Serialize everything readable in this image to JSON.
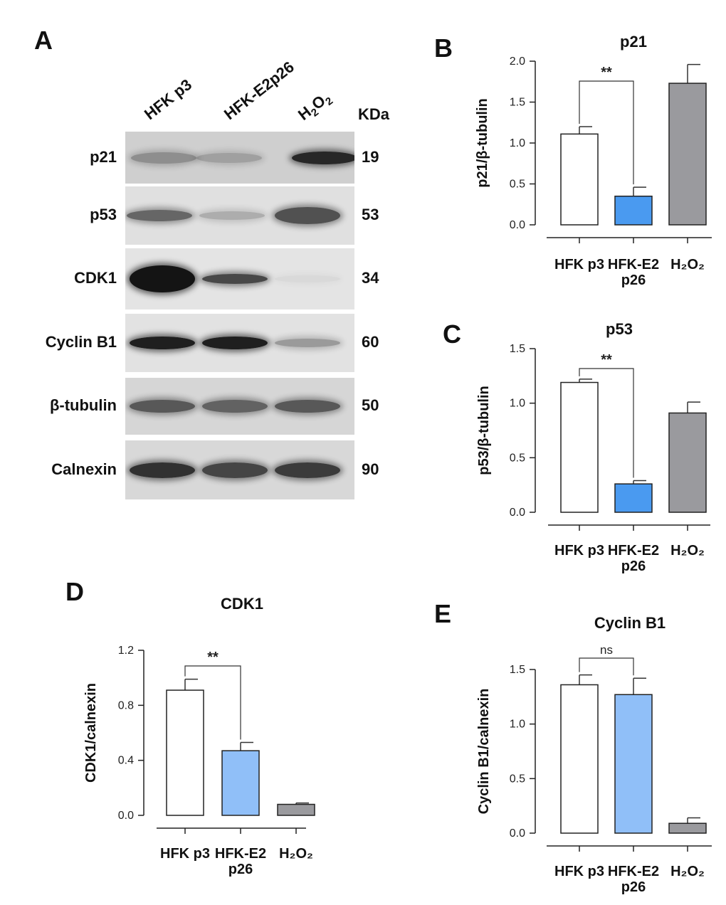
{
  "panel_a": {
    "letter": "A",
    "lanes": [
      "HFK p3",
      "HFK-E2p26",
      "H",
      "2",
      "O",
      "2"
    ],
    "kda_header": "KDa",
    "strips": [
      {
        "label": "p21",
        "kda": "19"
      },
      {
        "label": "p53",
        "kda": "53"
      },
      {
        "label": "CDK1",
        "kda": "34"
      },
      {
        "label": "Cyclin B1",
        "kda": "60"
      },
      {
        "label": "β-tubulin",
        "kda": "50"
      },
      {
        "label": "Calnexin",
        "kda": "90"
      }
    ]
  },
  "chart_data": [
    {
      "panel": "B",
      "type": "bar",
      "title": "p21",
      "ylabel": "p21/β-tubulin",
      "categories": [
        "HFK p3",
        "HFK-E2|p26",
        "H₂O₂"
      ],
      "values": [
        1.11,
        0.35,
        1.73
      ],
      "errors": [
        0.09,
        0.11,
        0.23
      ],
      "ylim": [
        0,
        2.0
      ],
      "yticks": [
        "0.0",
        "0.5",
        "1.0",
        "1.5",
        "2.0"
      ],
      "colors": [
        "#ffffff",
        "#4a9af0",
        "#9a9a9e"
      ],
      "significance": "**"
    },
    {
      "panel": "C",
      "type": "bar",
      "title": "p53",
      "ylabel": "p53/β-tubulin",
      "categories": [
        "HFK p3",
        "HFK-E2|p26",
        "H₂O₂"
      ],
      "values": [
        1.19,
        0.26,
        0.91
      ],
      "errors": [
        0.03,
        0.03,
        0.1
      ],
      "ylim": [
        0,
        1.5
      ],
      "yticks": [
        "0.0",
        "0.5",
        "1.0",
        "1.5"
      ],
      "colors": [
        "#ffffff",
        "#4a9af0",
        "#9a9a9e"
      ],
      "significance": "**"
    },
    {
      "panel": "D",
      "type": "bar",
      "title": "CDK1",
      "ylabel": "CDK1/calnexin",
      "categories": [
        "HFK p3",
        "HFK-E2|p26",
        "H₂O₂"
      ],
      "values": [
        0.91,
        0.47,
        0.08
      ],
      "errors": [
        0.08,
        0.06,
        0.01
      ],
      "ylim": [
        0,
        1.2
      ],
      "yticks": [
        "0.0",
        "0.4",
        "0.8",
        "1.2"
      ],
      "colors": [
        "#ffffff",
        "#90bff8",
        "#9a9a9e"
      ],
      "significance": "**"
    },
    {
      "panel": "E",
      "type": "bar",
      "title": "Cyclin B1",
      "ylabel": "Cyclin B1/calnexin",
      "categories": [
        "HFK p3",
        "HFK-E2|p26",
        "H₂O₂"
      ],
      "values": [
        1.36,
        1.27,
        0.09
      ],
      "errors": [
        0.09,
        0.15,
        0.05
      ],
      "ylim": [
        0,
        1.5
      ],
      "yticks": [
        "0.0",
        "0.5",
        "1.0",
        "1.5"
      ],
      "colors": [
        "#ffffff",
        "#90bff8",
        "#9a9a9e"
      ],
      "significance": "ns"
    }
  ]
}
